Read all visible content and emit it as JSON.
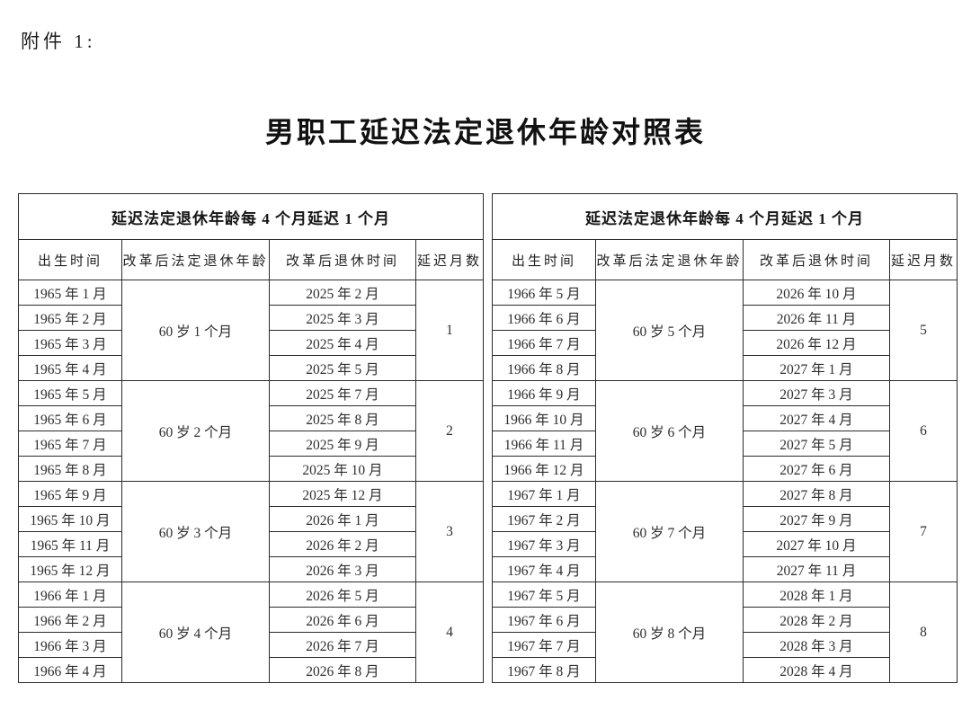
{
  "page": {
    "attachment_label": "附件 1:",
    "title": "男职工延迟法定退休年龄对照表"
  },
  "colors": {
    "background": "#ffffff",
    "text": "#222222",
    "border": "#2b2b2b"
  },
  "table": {
    "group_header": "延迟法定退休年龄每 4 个月延迟 1 个月",
    "columns": [
      "出生时间",
      "改革后法定退休年龄",
      "改革后退休时间",
      "延迟月数"
    ],
    "left_groups": [
      {
        "birth_months": [
          "1965 年 1 月",
          "1965 年 2 月",
          "1965 年 3 月",
          "1965 年 4 月"
        ],
        "retirement_age": "60 岁 1 个月",
        "retirement_months": [
          "2025 年 2 月",
          "2025 年 3 月",
          "2025 年 4 月",
          "2025 年 5 月"
        ],
        "delay_months": "1"
      },
      {
        "birth_months": [
          "1965 年 5 月",
          "1965 年 6 月",
          "1965 年 7 月",
          "1965 年 8 月"
        ],
        "retirement_age": "60 岁 2 个月",
        "retirement_months": [
          "2025 年 7 月",
          "2025 年 8 月",
          "2025 年 9 月",
          "2025 年 10 月"
        ],
        "delay_months": "2"
      },
      {
        "birth_months": [
          "1965 年 9 月",
          "1965 年 10 月",
          "1965 年 11 月",
          "1965 年 12 月"
        ],
        "retirement_age": "60 岁 3 个月",
        "retirement_months": [
          "2025 年 12 月",
          "2026 年 1 月",
          "2026 年 2 月",
          "2026 年 3 月"
        ],
        "delay_months": "3"
      },
      {
        "birth_months": [
          "1966 年 1 月",
          "1966 年 2 月",
          "1966 年 3 月",
          "1966 年 4 月"
        ],
        "retirement_age": "60 岁 4 个月",
        "retirement_months": [
          "2026 年 5 月",
          "2026 年 6 月",
          "2026 年 7 月",
          "2026 年 8 月"
        ],
        "delay_months": "4"
      }
    ],
    "right_groups": [
      {
        "birth_months": [
          "1966 年 5 月",
          "1966 年 6 月",
          "1966 年 7 月",
          "1966 年 8 月"
        ],
        "retirement_age": "60 岁 5 个月",
        "retirement_months": [
          "2026 年 10 月",
          "2026 年 11 月",
          "2026 年 12 月",
          "2027 年 1 月"
        ],
        "delay_months": "5"
      },
      {
        "birth_months": [
          "1966 年 9 月",
          "1966 年 10 月",
          "1966 年 11 月",
          "1966 年 12 月"
        ],
        "retirement_age": "60 岁 6 个月",
        "retirement_months": [
          "2027 年 3 月",
          "2027 年 4 月",
          "2027 年 5 月",
          "2027 年 6 月"
        ],
        "delay_months": "6"
      },
      {
        "birth_months": [
          "1967 年 1 月",
          "1967 年 2 月",
          "1967 年 3 月",
          "1967 年 4 月"
        ],
        "retirement_age": "60 岁 7 个月",
        "retirement_months": [
          "2027 年 8 月",
          "2027 年 9 月",
          "2027 年 10 月",
          "2027 年 11 月"
        ],
        "delay_months": "7"
      },
      {
        "birth_months": [
          "1967 年 5 月",
          "1967 年 6 月",
          "1967 年 7 月",
          "1967 年 8 月"
        ],
        "retirement_age": "60 岁 8 个月",
        "retirement_months": [
          "2028 年 1 月",
          "2028 年 2 月",
          "2028 年 3 月",
          "2028 年 4 月"
        ],
        "delay_months": "8"
      }
    ]
  }
}
